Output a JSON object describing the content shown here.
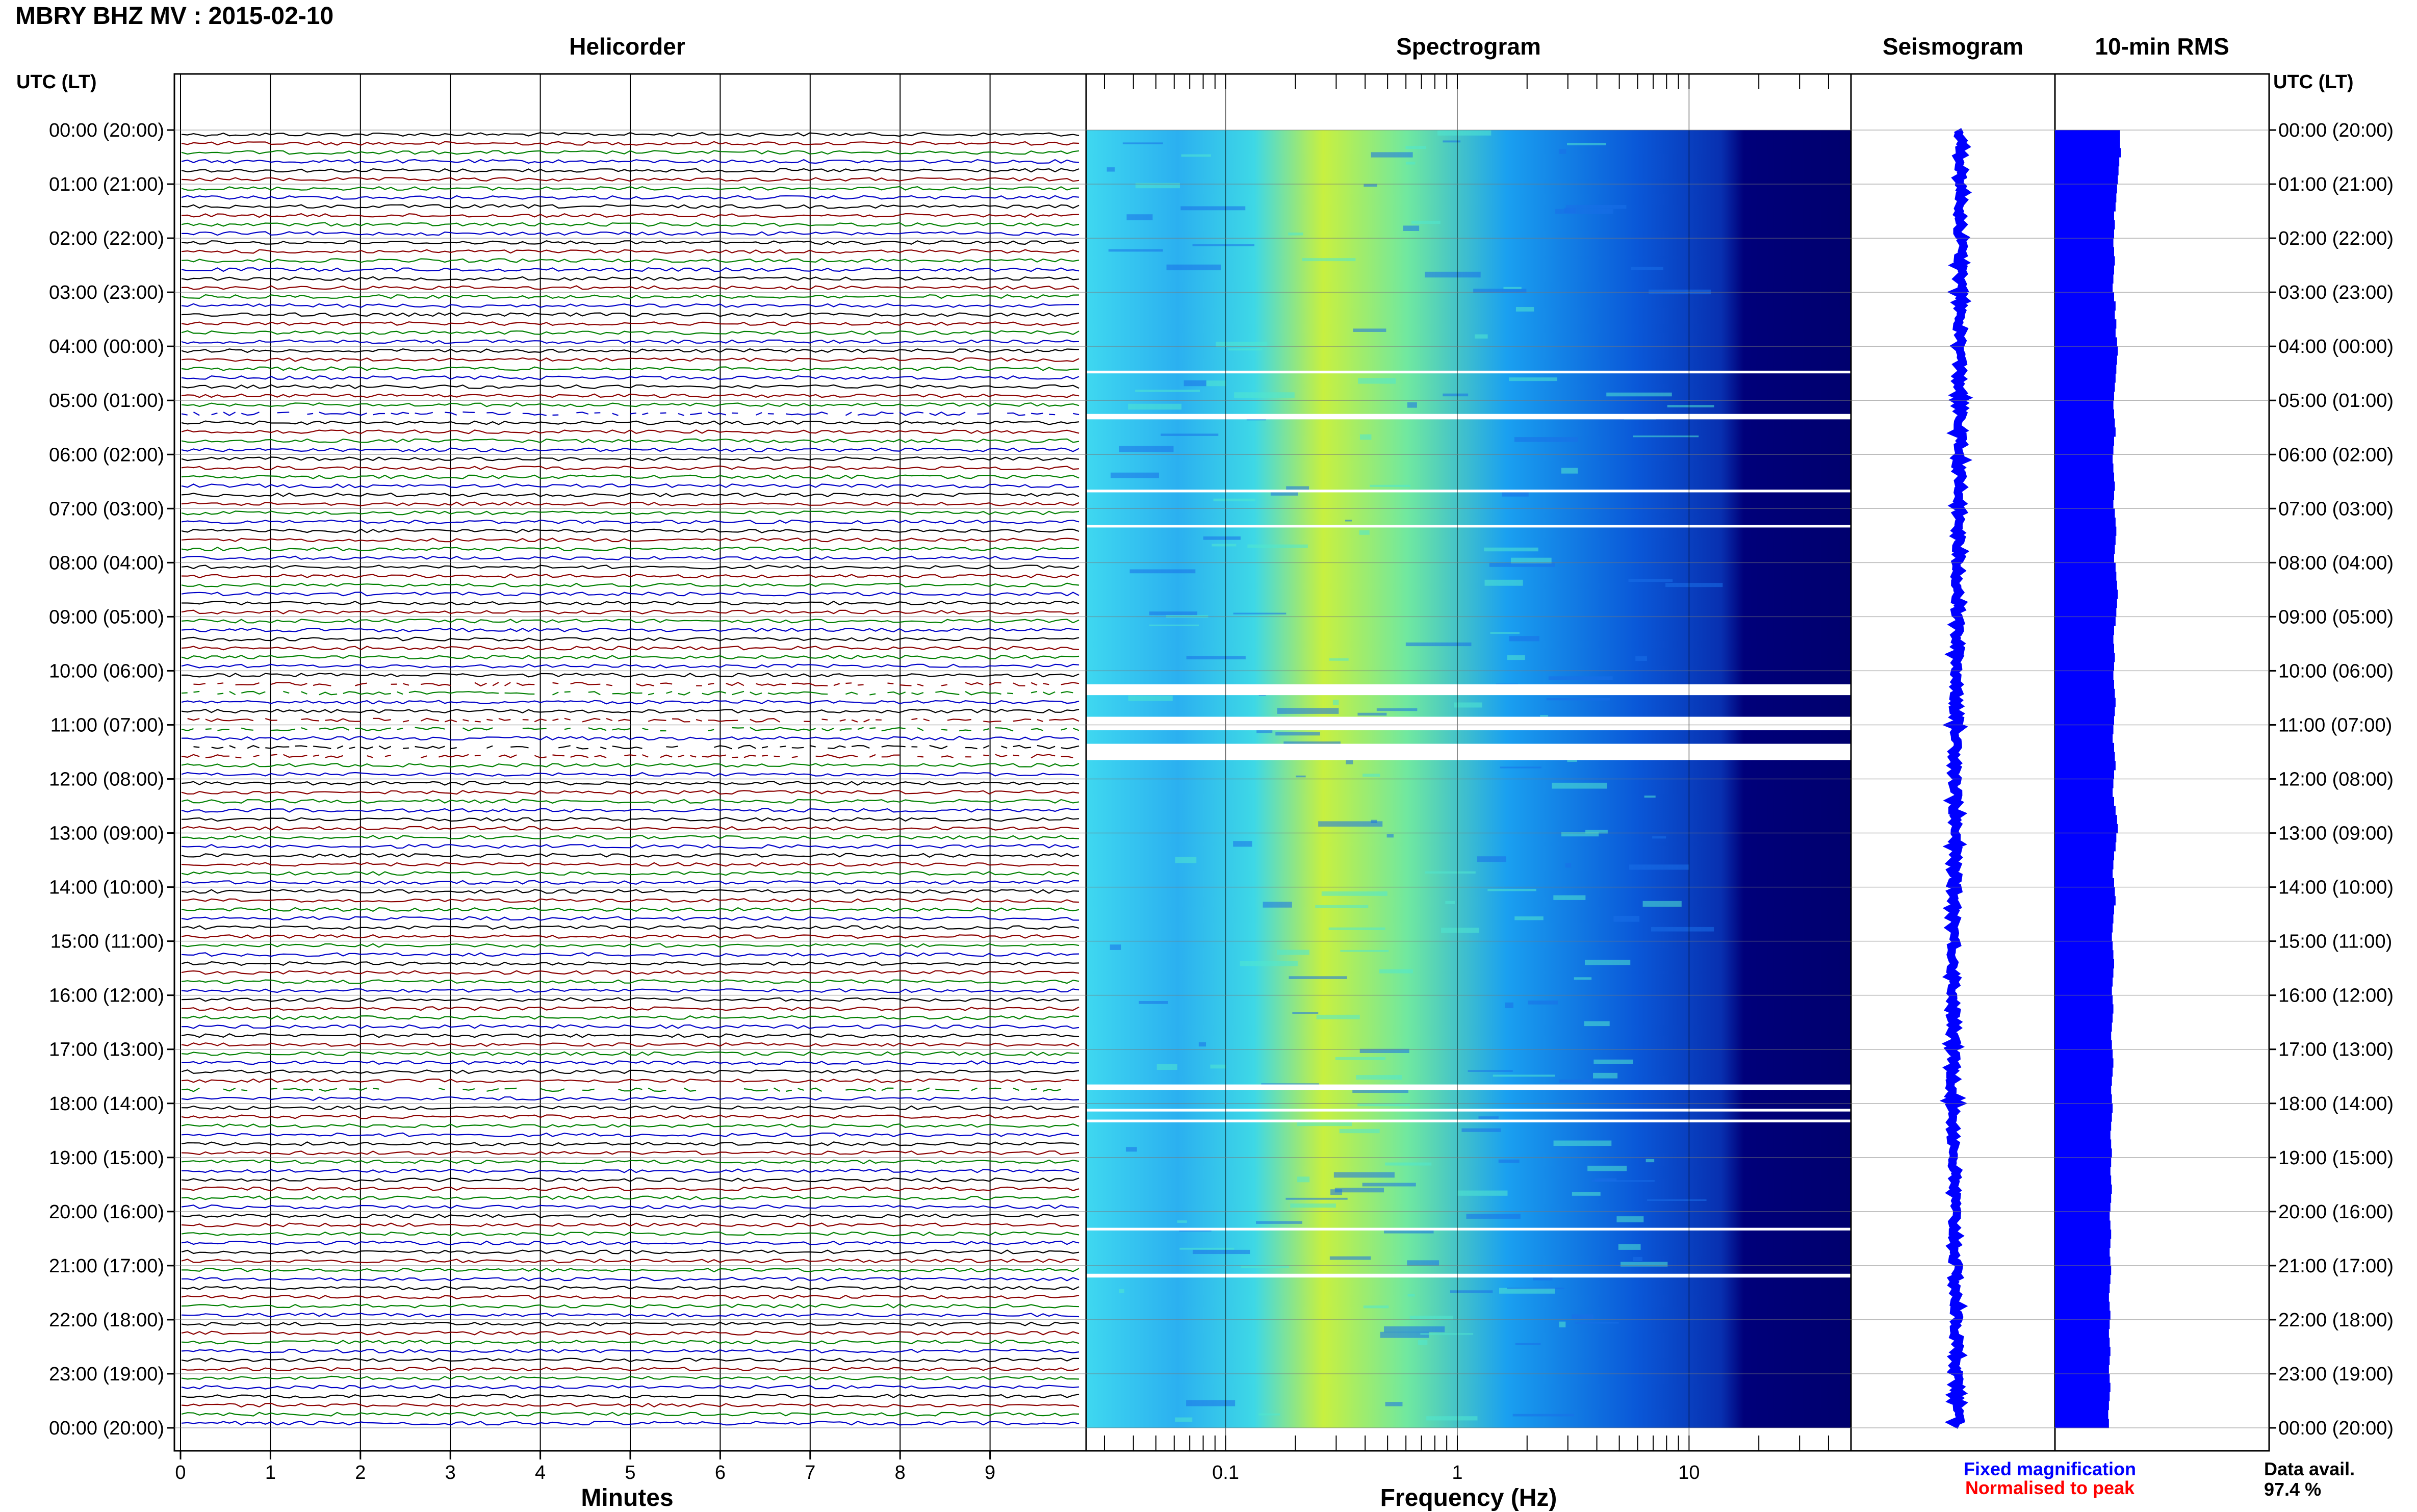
{
  "title": "MBRY BHZ MV : 2015-02-10",
  "panels": {
    "helicorder": "Helicorder",
    "spectrogram": "Spectrogram",
    "seismogram": "Seismogram",
    "rms": "10-min RMS"
  },
  "axis_label_left": "UTC (LT)",
  "axis_label_right": "UTC (LT)",
  "x_labels": {
    "helicorder": "Minutes",
    "spectrogram": "Frequency (Hz)"
  },
  "legend": {
    "fixed": "Fixed magnification",
    "normalised": "Normalised to peak"
  },
  "data_availability": {
    "label": "Data avail.",
    "value": "97.4 %"
  },
  "colors": {
    "trace_cycle": [
      "#000000",
      "#8b0000",
      "#008000",
      "#0000c8"
    ],
    "spectrogram_low": "#00007a",
    "spectrogram_mid": "#00c8ff",
    "spectrogram_high": "#f0f000",
    "seismogram": "#0000ff",
    "rms": "#0000ff",
    "legend_fixed": "#0000ff",
    "legend_normalised": "#ff0000"
  },
  "chart_data": {
    "type": "heatmap",
    "station": "MBRY",
    "channel": "BHZ",
    "network": "MV",
    "date": "2015-02-10",
    "time_ticks": [
      "00:00 (20:00)",
      "01:00 (21:00)",
      "02:00 (22:00)",
      "03:00 (23:00)",
      "04:00 (00:00)",
      "05:00 (01:00)",
      "06:00 (02:00)",
      "07:00 (03:00)",
      "08:00 (04:00)",
      "09:00 (05:00)",
      "10:00 (06:00)",
      "11:00 (07:00)",
      "12:00 (08:00)",
      "13:00 (09:00)",
      "14:00 (10:00)",
      "15:00 (11:00)",
      "16:00 (12:00)",
      "17:00 (13:00)",
      "18:00 (14:00)",
      "19:00 (15:00)",
      "20:00 (16:00)",
      "21:00 (17:00)",
      "22:00 (18:00)",
      "23:00 (19:00)",
      "00:00 (20:00)"
    ],
    "helicorder": {
      "minutes_ticks": [
        "0",
        "1",
        "2",
        "3",
        "4",
        "5",
        "6",
        "7",
        "8",
        "9"
      ],
      "xlim": [
        0,
        10
      ],
      "trace_minutes": 10,
      "trace_count": 144
    },
    "spectrogram": {
      "xscale": "log",
      "xlim": [
        0.025,
        50
      ],
      "freq_ticks": [
        0.1,
        1,
        10
      ],
      "freq_tick_labels": [
        "0.1",
        "1",
        "10"
      ],
      "peak_band_hz": [
        0.2,
        0.6
      ],
      "gaps_hours": [
        [
          4.45,
          4.5
        ],
        [
          5.25,
          5.35
        ],
        [
          6.65,
          6.7
        ],
        [
          7.3,
          7.35
        ],
        [
          10.25,
          10.45
        ],
        [
          10.85,
          11.1
        ],
        [
          11.35,
          11.65
        ],
        [
          17.65,
          17.75
        ],
        [
          18.1,
          18.15
        ],
        [
          18.3,
          18.35
        ],
        [
          20.3,
          20.35
        ],
        [
          21.15,
          21.22
        ]
      ]
    },
    "seismogram": {
      "trace_offsets": [
        0.0,
        0.01,
        0.0,
        -0.01,
        -0.02,
        -0.03,
        -0.04,
        -0.06,
        -0.08,
        -0.1,
        -0.12,
        -0.14,
        -0.16,
        -0.18,
        -0.2,
        -0.22,
        -0.24,
        -0.25,
        -0.24,
        -0.22,
        -0.2,
        -0.17,
        -0.14,
        -0.12,
        -0.12
      ]
    },
    "rms_10min": {
      "values": [
        0.88,
        0.88,
        0.89,
        0.87,
        0.86,
        0.85,
        0.84,
        0.83,
        0.82,
        0.8,
        0.81,
        0.8,
        0.79,
        0.8,
        0.81,
        0.8,
        0.79,
        0.78,
        0.8,
        0.82,
        0.81,
        0.83,
        0.82,
        0.84,
        0.85,
        0.84,
        0.83,
        0.82,
        0.81,
        0.8,
        0.79,
        0.8,
        0.81,
        0.82,
        0.8,
        0.79,
        0.78,
        0.79,
        0.8,
        0.81,
        0.8,
        0.79,
        0.81,
        0.82,
        0.83,
        0.82,
        0.81,
        0.8,
        0.82,
        0.83,
        0.84,
        0.85,
        0.84,
        0.83,
        0.82,
        0.8,
        0.79,
        0.8,
        0.81,
        0.8,
        0.79,
        0.8,
        0.81,
        0.82,
        0.81,
        0.8,
        0.79,
        0.78,
        0.8,
        0.81,
        0.82,
        0.8,
        0.79,
        0.78,
        0.8,
        0.82,
        0.84,
        0.85,
        0.83,
        0.82,
        0.8,
        0.79,
        0.78,
        0.8,
        0.81,
        0.82,
        0.8,
        0.79,
        0.78,
        0.77,
        0.78,
        0.79,
        0.8,
        0.79,
        0.78,
        0.77,
        0.78,
        0.79,
        0.78,
        0.77,
        0.76,
        0.77,
        0.78,
        0.79,
        0.78,
        0.77,
        0.76,
        0.77,
        0.78,
        0.77,
        0.76,
        0.75,
        0.76,
        0.77,
        0.76,
        0.75,
        0.76,
        0.77,
        0.76,
        0.75,
        0.74,
        0.75,
        0.76,
        0.75,
        0.74,
        0.75,
        0.76,
        0.75,
        0.74,
        0.73,
        0.74,
        0.75,
        0.74,
        0.73,
        0.74,
        0.75,
        0.74,
        0.73,
        0.74,
        0.75,
        0.74,
        0.73,
        0.72,
        0.73
      ]
    }
  }
}
